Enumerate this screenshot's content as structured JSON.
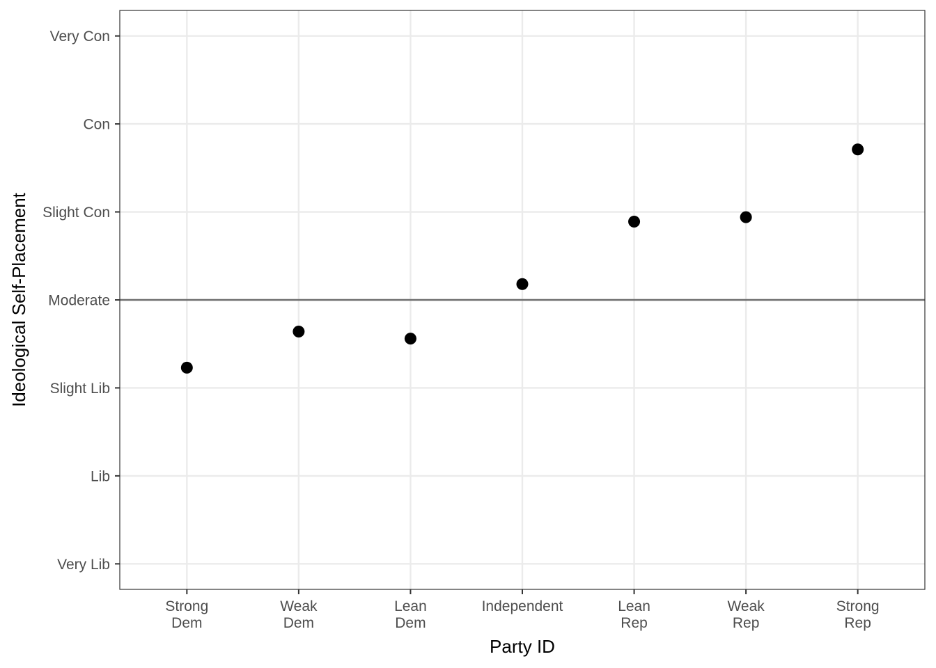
{
  "chart_data": {
    "type": "scatter",
    "title": "",
    "xlabel": "Party ID",
    "ylabel": "Ideological Self-Placement",
    "categories": [
      "Strong\nDem",
      "Weak\nDem",
      "Lean\nDem",
      "Independent",
      "Lean\nRep",
      "Weak\nRep",
      "Strong\nRep"
    ],
    "y_ticks": [
      {
        "value": 1,
        "label": "Very Lib"
      },
      {
        "value": 2,
        "label": "Lib"
      },
      {
        "value": 3,
        "label": "Slight Lib"
      },
      {
        "value": 4,
        "label": "Moderate"
      },
      {
        "value": 5,
        "label": "Slight Con"
      },
      {
        "value": 6,
        "label": "Con"
      },
      {
        "value": 7,
        "label": "Very Con"
      }
    ],
    "series": [
      {
        "values": [
          3.23,
          3.64,
          3.56,
          4.18,
          4.89,
          4.94,
          5.71
        ]
      }
    ],
    "ylim": [
      0.71,
      7.29
    ],
    "reference_line": {
      "y": 4
    },
    "grid": true,
    "legend": "none",
    "colors": {
      "point": "#000000",
      "grid": "#ebebeb",
      "reference_line": "#6e6e6e",
      "panel_border": "#333333",
      "tick_text": "#4d4d4d"
    }
  }
}
